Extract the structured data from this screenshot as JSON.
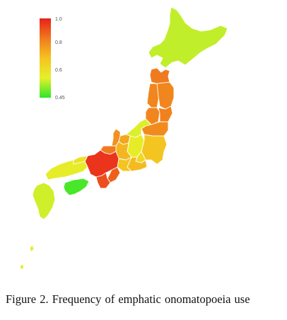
{
  "figure": {
    "caption_label": "Figure 2.",
    "caption_text": "Frequency of emphatic onomatopoeia use"
  },
  "legend": {
    "ticks": [
      "1.0",
      "0.8",
      "0.6",
      "0.45"
    ],
    "tick_values": [
      1.0,
      0.8,
      0.6,
      0.45
    ],
    "min": 0.45,
    "max": 1.0,
    "gradient": [
      "#e8201b",
      "#f07a1e",
      "#f5c320",
      "#e6f02a",
      "#2ee62a"
    ]
  },
  "regions": [
    {
      "name": "hokkaido",
      "value": 0.56
    },
    {
      "name": "aomori",
      "value": 0.86
    },
    {
      "name": "iwate",
      "value": 0.84
    },
    {
      "name": "akita",
      "value": 0.84
    },
    {
      "name": "miyagi",
      "value": 0.85
    },
    {
      "name": "yamagata",
      "value": 0.84
    },
    {
      "name": "fukushima",
      "value": 0.83
    },
    {
      "name": "niigata",
      "value": 0.58
    },
    {
      "name": "kanto",
      "value": 0.72
    },
    {
      "name": "nagano",
      "value": 0.6
    },
    {
      "name": "yamanashi",
      "value": 0.66
    },
    {
      "name": "toyama",
      "value": 0.78
    },
    {
      "name": "ishikawa",
      "value": 0.82
    },
    {
      "name": "fukui",
      "value": 0.86
    },
    {
      "name": "gifu",
      "value": 0.75
    },
    {
      "name": "aichi",
      "value": 0.72
    },
    {
      "name": "shizuoka",
      "value": 0.74
    },
    {
      "name": "kinki",
      "value": 0.97
    },
    {
      "name": "mie",
      "value": 0.9
    },
    {
      "name": "wakayama",
      "value": 0.93
    },
    {
      "name": "chugoku",
      "value": 0.6
    },
    {
      "name": "tottori",
      "value": 0.63
    },
    {
      "name": "shikoku",
      "value": 0.47
    },
    {
      "name": "kyushu",
      "value": 0.57
    },
    {
      "name": "okinawa",
      "value": 0.6
    }
  ]
}
